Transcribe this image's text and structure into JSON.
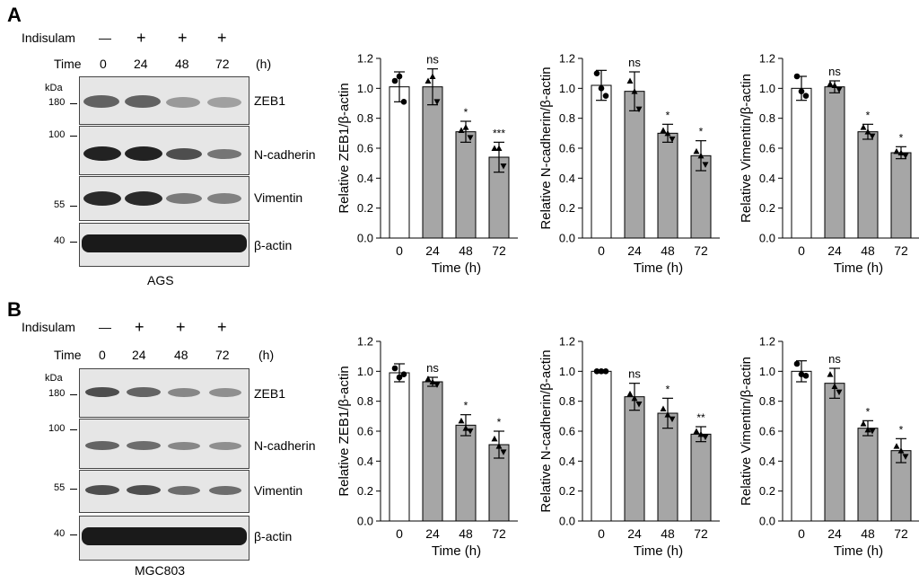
{
  "panels": [
    {
      "letter": "A",
      "treatment_label": "Indisulam",
      "treatment_signs": [
        "—",
        "+",
        "+",
        "+"
      ],
      "time_label": "Time",
      "time_values": [
        "0",
        "24",
        "48",
        "72"
      ],
      "time_unit": "(h)",
      "kda_label": "kDa",
      "markers": [
        "180",
        "100",
        "55",
        "40"
      ],
      "proteins": [
        "ZEB1",
        "N-cadherin",
        "Vimentin",
        "β-actin"
      ],
      "cell_line": "AGS"
    },
    {
      "letter": "B",
      "treatment_label": "Indisulam",
      "treatment_signs": [
        "—",
        "+",
        "+",
        "+"
      ],
      "time_label": "Time",
      "time_values": [
        "0",
        "24",
        "48",
        "72"
      ],
      "time_unit": "(h)",
      "kda_label": "kDa",
      "markers": [
        "180",
        "100",
        "55",
        "40"
      ],
      "proteins": [
        "ZEB1",
        "N-cadherin",
        "Vimentin",
        "β-actin"
      ],
      "cell_line": "MGC803"
    }
  ],
  "chart_data": [
    {
      "type": "bar",
      "panel": "A",
      "categories": [
        "0",
        "24",
        "48",
        "72"
      ],
      "values": [
        1.01,
        1.01,
        0.71,
        0.54
      ],
      "errors": [
        0.1,
        0.12,
        0.07,
        0.1
      ],
      "points": [
        [
          1.05,
          1.08,
          0.91
        ],
        [
          1.05,
          1.08,
          0.91
        ],
        [
          0.72,
          0.74,
          0.67
        ],
        [
          0.6,
          0.6,
          0.48
        ]
      ],
      "significance": [
        "",
        "ns",
        "*",
        "***"
      ],
      "xlabel": "Time (h)",
      "ylabel": "Relative ZEB1/β-actin",
      "ylim": [
        0,
        1.2
      ],
      "yticks": [
        "0.0",
        "0.2",
        "0.4",
        "0.6",
        "0.8",
        "1.0",
        "1.2"
      ],
      "bar_colors": [
        "#ffffff",
        "#a6a6a6",
        "#a6a6a6",
        "#a6a6a6"
      ]
    },
    {
      "type": "bar",
      "panel": "A",
      "categories": [
        "0",
        "24",
        "48",
        "72"
      ],
      "values": [
        1.02,
        0.98,
        0.7,
        0.55
      ],
      "errors": [
        0.1,
        0.13,
        0.06,
        0.1
      ],
      "points": [
        [
          1.1,
          1.0,
          0.95
        ],
        [
          1.05,
          0.98,
          0.86
        ],
        [
          0.72,
          0.7,
          0.66
        ],
        [
          0.58,
          0.55,
          0.49
        ]
      ],
      "significance": [
        "",
        "ns",
        "*",
        "*"
      ],
      "xlabel": "Time (h)",
      "ylabel": "Relative N-cadherin/β-actin",
      "ylim": [
        0,
        1.2
      ],
      "yticks": [
        "0.0",
        "0.2",
        "0.4",
        "0.6",
        "0.8",
        "1.0",
        "1.2"
      ],
      "bar_colors": [
        "#ffffff",
        "#a6a6a6",
        "#a6a6a6",
        "#a6a6a6"
      ]
    },
    {
      "type": "bar",
      "panel": "A",
      "categories": [
        "0",
        "24",
        "48",
        "72"
      ],
      "values": [
        1.0,
        1.01,
        0.71,
        0.57
      ],
      "errors": [
        0.08,
        0.04,
        0.05,
        0.04
      ],
      "points": [
        [
          1.08,
          0.98,
          0.95
        ],
        [
          1.03,
          1.02,
          0.99
        ],
        [
          0.74,
          0.71,
          0.68
        ],
        [
          0.58,
          0.57,
          0.55
        ]
      ],
      "significance": [
        "",
        "ns",
        "*",
        "*"
      ],
      "xlabel": "Time (h)",
      "ylabel": "Relative Vimentin/β-actin",
      "ylim": [
        0,
        1.2
      ],
      "yticks": [
        "0.0",
        "0.2",
        "0.4",
        "0.6",
        "0.8",
        "1.0",
        "1.2"
      ],
      "bar_colors": [
        "#ffffff",
        "#a6a6a6",
        "#a6a6a6",
        "#a6a6a6"
      ]
    },
    {
      "type": "bar",
      "panel": "B",
      "categories": [
        "0",
        "24",
        "48",
        "72"
      ],
      "values": [
        0.99,
        0.93,
        0.64,
        0.51
      ],
      "errors": [
        0.06,
        0.03,
        0.07,
        0.09
      ],
      "points": [
        [
          1.02,
          0.96,
          0.98
        ],
        [
          0.95,
          0.93,
          0.91
        ],
        [
          0.67,
          0.62,
          0.6
        ],
        [
          0.55,
          0.5,
          0.46
        ]
      ],
      "significance": [
        "",
        "ns",
        "*",
        "*"
      ],
      "xlabel": "Time (h)",
      "ylabel": "Relative ZEB1/β-actin",
      "ylim": [
        0,
        1.2
      ],
      "yticks": [
        "0.0",
        "0.2",
        "0.4",
        "0.6",
        "0.8",
        "1.0",
        "1.2"
      ],
      "bar_colors": [
        "#ffffff",
        "#a6a6a6",
        "#a6a6a6",
        "#a6a6a6"
      ]
    },
    {
      "type": "bar",
      "panel": "B",
      "categories": [
        "0",
        "24",
        "48",
        "72"
      ],
      "values": [
        1.0,
        0.83,
        0.72,
        0.58
      ],
      "errors": [
        0.01,
        0.09,
        0.1,
        0.05
      ],
      "points": [
        [
          1.0,
          1.0,
          1.0
        ],
        [
          0.85,
          0.82,
          0.78
        ],
        [
          0.75,
          0.71,
          0.68
        ],
        [
          0.6,
          0.58,
          0.56
        ]
      ],
      "significance": [
        "",
        "ns",
        "*",
        "**"
      ],
      "xlabel": "Time (h)",
      "ylabel": "Relative N-cadherin/β-actin",
      "ylim": [
        0,
        1.2
      ],
      "yticks": [
        "0.0",
        "0.2",
        "0.4",
        "0.6",
        "0.8",
        "1.0",
        "1.2"
      ],
      "bar_colors": [
        "#ffffff",
        "#a6a6a6",
        "#a6a6a6",
        "#a6a6a6"
      ]
    },
    {
      "type": "bar",
      "panel": "B",
      "categories": [
        "0",
        "24",
        "48",
        "72"
      ],
      "values": [
        1.0,
        0.92,
        0.62,
        0.47
      ],
      "errors": [
        0.07,
        0.1,
        0.05,
        0.08
      ],
      "points": [
        [
          1.05,
          0.98,
          0.97
        ],
        [
          0.98,
          0.9,
          0.86
        ],
        [
          0.65,
          0.61,
          0.6
        ],
        [
          0.5,
          0.47,
          0.43
        ]
      ],
      "significance": [
        "",
        "ns",
        "*",
        "*"
      ],
      "xlabel": "Time (h)",
      "ylabel": "Relative Vimentin/β-actin",
      "ylim": [
        0,
        1.2
      ],
      "yticks": [
        "0.0",
        "0.2",
        "0.4",
        "0.6",
        "0.8",
        "1.0",
        "1.2"
      ],
      "bar_colors": [
        "#ffffff",
        "#a6a6a6",
        "#a6a6a6",
        "#a6a6a6"
      ]
    }
  ]
}
